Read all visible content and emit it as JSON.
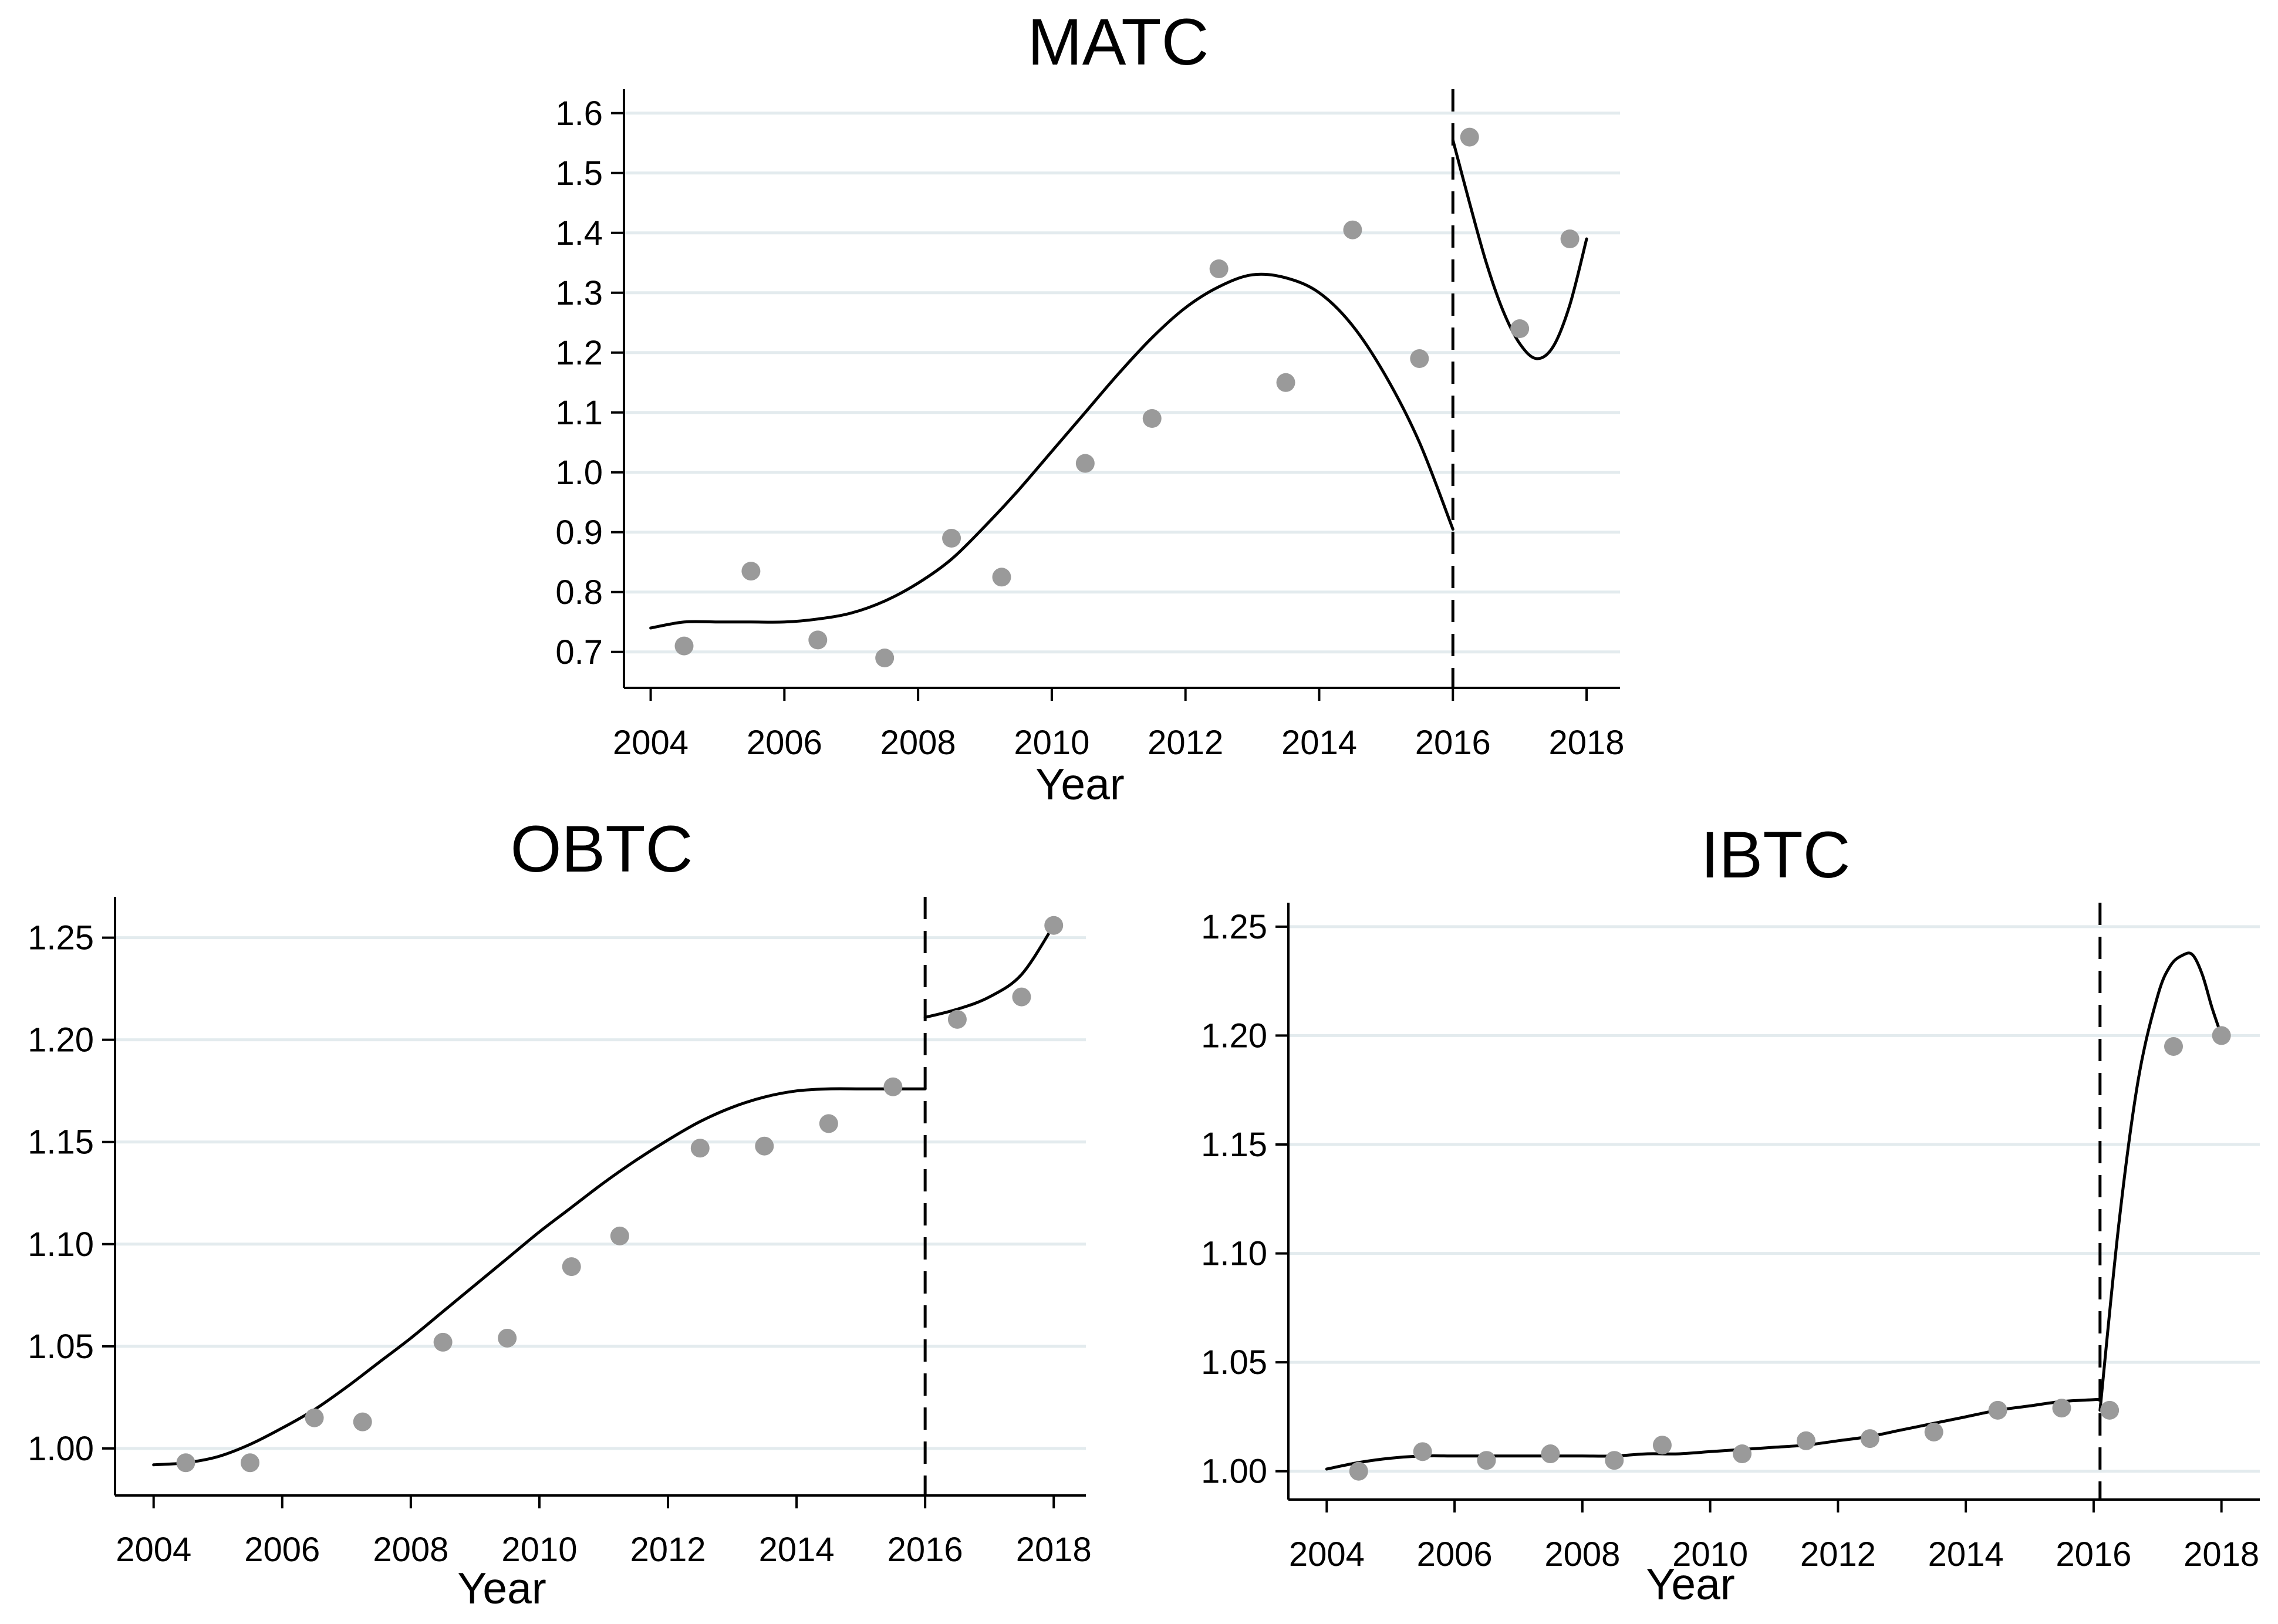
{
  "chart_data": [
    {
      "id": "matc",
      "type": "scatter",
      "title": "MATC",
      "xlabel": "Year",
      "ylabel": "",
      "xlim": [
        2003.6,
        2018.5
      ],
      "ylim": [
        0.64,
        1.64
      ],
      "xticks": [
        2004,
        2006,
        2008,
        2010,
        2012,
        2014,
        2016,
        2018
      ],
      "yticks": [
        0.7,
        0.8,
        0.9,
        1.0,
        1.1,
        1.2,
        1.3,
        1.4,
        1.5,
        1.6
      ],
      "ytick_labels": [
        "0.7",
        "0.8",
        "0.9",
        "1.0",
        "1.1",
        "1.2",
        "1.3",
        "1.4",
        "1.5",
        "1.6"
      ],
      "xtick_labels": [
        "2004",
        "2006",
        "2008",
        "2010",
        "2012",
        "2014",
        "2016",
        "2018"
      ],
      "cutoff_x": 2016,
      "points": {
        "x": [
          2004.5,
          2005.5,
          2006.5,
          2007.5,
          2008.5,
          2009.25,
          2010.5,
          2011.5,
          2012.5,
          2013.5,
          2014.5,
          2015.5,
          2016.25,
          2017.0,
          2017.75
        ],
        "y": [
          0.71,
          0.835,
          0.72,
          0.69,
          0.89,
          0.825,
          1.015,
          1.09,
          1.34,
          1.15,
          1.405,
          1.19,
          1.56,
          1.24,
          1.39
        ]
      },
      "fit_before": {
        "x": [
          2004.0,
          2004.5,
          2005.0,
          2005.5,
          2006.0,
          2006.5,
          2007.0,
          2007.5,
          2008.0,
          2008.5,
          2009.0,
          2009.5,
          2010.0,
          2010.5,
          2011.0,
          2011.5,
          2012.0,
          2012.5,
          2013.0,
          2013.5,
          2014.0,
          2014.5,
          2015.0,
          2015.5,
          2016.0
        ],
        "y": [
          0.74,
          0.75,
          0.75,
          0.75,
          0.75,
          0.755,
          0.765,
          0.785,
          0.815,
          0.855,
          0.91,
          0.97,
          1.035,
          1.1,
          1.165,
          1.225,
          1.275,
          1.31,
          1.33,
          1.325,
          1.3,
          1.245,
          1.16,
          1.05,
          0.905
        ]
      },
      "fit_after": {
        "x": [
          2016.0,
          2016.25,
          2016.5,
          2016.75,
          2017.0,
          2017.25,
          2017.5,
          2017.75,
          2018.0
        ],
        "y": [
          1.555,
          1.45,
          1.35,
          1.27,
          1.215,
          1.19,
          1.21,
          1.28,
          1.39
        ]
      }
    },
    {
      "id": "obtc",
      "type": "scatter",
      "title": "OBTC",
      "xlabel": "Year",
      "ylabel": "",
      "xlim": [
        2003.4,
        2018.5
      ],
      "ylim": [
        0.977,
        1.27
      ],
      "xticks": [
        2004,
        2006,
        2008,
        2010,
        2012,
        2014,
        2016,
        2018
      ],
      "yticks": [
        1.0,
        1.05,
        1.1,
        1.15,
        1.2,
        1.25
      ],
      "ytick_labels": [
        "1.00",
        "1.05",
        "1.10",
        "1.15",
        "1.20",
        "1.25"
      ],
      "xtick_labels": [
        "2004",
        "2006",
        "2008",
        "2010",
        "2012",
        "2014",
        "2016",
        "2018"
      ],
      "cutoff_x": 2016,
      "points": {
        "x": [
          2004.5,
          2005.5,
          2006.5,
          2007.25,
          2008.5,
          2009.5,
          2010.5,
          2011.25,
          2012.5,
          2013.5,
          2014.5,
          2015.5,
          2016.5,
          2017.5,
          2018.0
        ],
        "y": [
          0.993,
          0.993,
          1.015,
          1.013,
          1.052,
          1.054,
          1.089,
          1.104,
          1.147,
          1.148,
          1.159,
          1.177,
          1.21,
          1.221,
          1.256
        ]
      },
      "fit_before": {
        "x": [
          2004.0,
          2004.5,
          2005.0,
          2005.5,
          2006.0,
          2006.5,
          2007.0,
          2007.5,
          2008.0,
          2008.5,
          2009.0,
          2009.5,
          2010.0,
          2010.5,
          2011.0,
          2011.5,
          2012.0,
          2012.5,
          2013.0,
          2013.5,
          2014.0,
          2014.5,
          2015.0,
          2015.5,
          2016.0
        ],
        "y": [
          0.992,
          0.993,
          0.996,
          1.002,
          1.01,
          1.019,
          1.03,
          1.042,
          1.054,
          1.067,
          1.08,
          1.093,
          1.106,
          1.118,
          1.13,
          1.141,
          1.151,
          1.16,
          1.167,
          1.172,
          1.175,
          1.176,
          1.176,
          1.176,
          1.176
        ]
      },
      "fit_after": {
        "x": [
          2016.0,
          2016.5,
          2017.0,
          2017.5,
          2018.0
        ],
        "y": [
          1.211,
          1.215,
          1.221,
          1.232,
          1.256
        ]
      }
    },
    {
      "id": "ibtc",
      "type": "scatter",
      "title": "IBTC",
      "xlabel": "Year",
      "ylabel": "",
      "xlim": [
        2003.4,
        2018.6
      ],
      "ylim": [
        0.987,
        1.261
      ],
      "xticks": [
        2004,
        2006,
        2008,
        2010,
        2012,
        2014,
        2016,
        2018
      ],
      "yticks": [
        1.0,
        1.05,
        1.1,
        1.15,
        1.2,
        1.25
      ],
      "ytick_labels": [
        "1.00",
        "1.05",
        "1.10",
        "1.15",
        "1.20",
        "1.25"
      ],
      "xtick_labels": [
        "2004",
        "2006",
        "2008",
        "2010",
        "2012",
        "2014",
        "2016",
        "2018"
      ],
      "cutoff_x": 2016.1,
      "points": {
        "x": [
          2004.5,
          2005.5,
          2006.5,
          2007.5,
          2008.5,
          2009.25,
          2010.5,
          2011.5,
          2012.5,
          2013.5,
          2014.5,
          2015.5,
          2016.25,
          2017.25,
          2018.0
        ],
        "y": [
          1.0,
          1.009,
          1.005,
          1.008,
          1.005,
          1.012,
          1.008,
          1.014,
          1.015,
          1.018,
          1.028,
          1.029,
          1.028,
          1.195,
          1.2
        ]
      },
      "fit_before": {
        "x": [
          2004.0,
          2004.5,
          2005.0,
          2005.5,
          2006.0,
          2006.5,
          2007.0,
          2007.5,
          2008.0,
          2008.5,
          2009.0,
          2009.5,
          2010.0,
          2010.5,
          2011.0,
          2011.5,
          2012.0,
          2012.5,
          2013.0,
          2013.5,
          2014.0,
          2014.5,
          2015.0,
          2015.5,
          2016.1
        ],
        "y": [
          1.001,
          1.004,
          1.006,
          1.007,
          1.007,
          1.007,
          1.007,
          1.007,
          1.007,
          1.007,
          1.008,
          1.008,
          1.009,
          1.01,
          1.011,
          1.012,
          1.014,
          1.016,
          1.019,
          1.022,
          1.025,
          1.028,
          1.03,
          1.032,
          1.033
        ]
      },
      "fit_after": {
        "x": [
          2016.1,
          2016.4,
          2016.7,
          2017.0,
          2017.2,
          2017.4,
          2017.55,
          2017.7,
          2017.85,
          2018.0
        ],
        "y": [
          1.028,
          1.115,
          1.18,
          1.218,
          1.232,
          1.237,
          1.237,
          1.228,
          1.213,
          1.2
        ]
      }
    }
  ]
}
